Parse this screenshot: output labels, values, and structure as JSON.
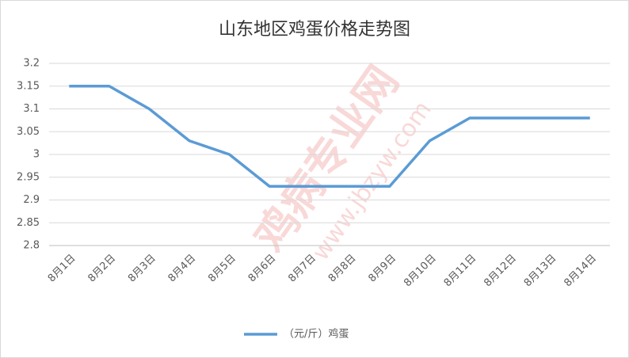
{
  "chart_data": {
    "type": "line",
    "title": "山东地区鸡蛋价格走势图",
    "categories": [
      "8月1日",
      "8月2日",
      "8月3日",
      "8月4日",
      "8月5日",
      "8月6日",
      "8月7日",
      "8月8日",
      "8月9日",
      "8月10日",
      "8月11日",
      "8月12日",
      "8月13日",
      "8月14日"
    ],
    "series": [
      {
        "name": "（元/斤）鸡蛋",
        "color": "#5b9bd5",
        "values": [
          3.15,
          3.15,
          3.1,
          3.03,
          3.0,
          2.93,
          2.93,
          2.93,
          2.93,
          3.03,
          3.08,
          3.08,
          3.08,
          3.08
        ]
      }
    ],
    "ylim": [
      2.8,
      3.2
    ],
    "yticks": [
      2.8,
      2.85,
      2.9,
      2.95,
      3,
      3.05,
      3.1,
      3.15,
      3.2
    ],
    "grid": true,
    "legend": "bottom",
    "watermark": [
      "鸡病专业网",
      "www.jbzyw.com"
    ]
  }
}
